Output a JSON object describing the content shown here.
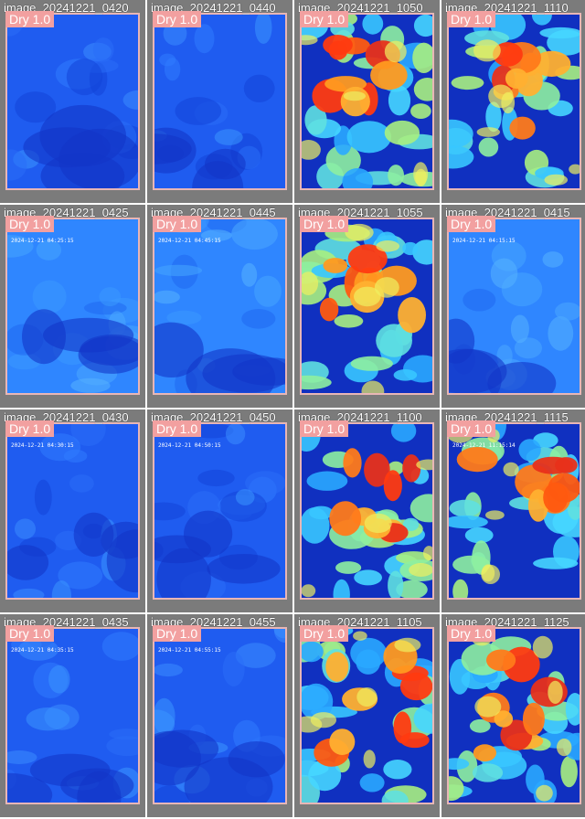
{
  "tiles": [
    {
      "filename": "image_20241221_0420",
      "badge": "Dry 1.0",
      "timestamp": "",
      "variant": "blue",
      "seed": 1
    },
    {
      "filename": "image_20241221_0440",
      "badge": "Dry 1.0",
      "timestamp": "",
      "variant": "blue",
      "seed": 2
    },
    {
      "filename": "image_20241221_1050",
      "badge": "Dry 1.0",
      "timestamp": "",
      "variant": "warm",
      "seed": 3
    },
    {
      "filename": "image_20241221_1110",
      "badge": "Dry 1.0",
      "timestamp": "",
      "variant": "warm",
      "seed": 4
    },
    {
      "filename": "image_20241221_0425",
      "badge": "Dry 1.0",
      "timestamp": "2024-12-21 04:25:15",
      "variant": "lightblue",
      "seed": 5
    },
    {
      "filename": "image_20241221_0445",
      "badge": "Dry 1.0",
      "timestamp": "2024-12-21 04:45:15",
      "variant": "lightblue",
      "seed": 6
    },
    {
      "filename": "image_20241221_1055",
      "badge": "Dry 1.0",
      "timestamp": "",
      "variant": "warm",
      "seed": 7
    },
    {
      "filename": "image_20241221_0415",
      "badge": "Dry 1.0",
      "timestamp": "2024-12-21 04:15:15",
      "variant": "lightblue",
      "seed": 8
    },
    {
      "filename": "image_20241221_0430",
      "badge": "Dry 1.0",
      "timestamp": "2024-12-21 04:30:15",
      "variant": "blue",
      "seed": 9
    },
    {
      "filename": "image_20241221_0450",
      "badge": "Dry 1.0",
      "timestamp": "2024-12-21 04:50:15",
      "variant": "blue",
      "seed": 10
    },
    {
      "filename": "image_20241221_1100",
      "badge": "Dry 1.0",
      "timestamp": "",
      "variant": "warm",
      "seed": 11
    },
    {
      "filename": "image_20241221_1115",
      "badge": "Dry 1.0",
      "timestamp": "2024-12-21 11:15:14",
      "variant": "warm",
      "seed": 12
    },
    {
      "filename": "image_20241221_0435",
      "badge": "Dry 1.0",
      "timestamp": "2024-12-21 04:35:15",
      "variant": "blue",
      "seed": 13
    },
    {
      "filename": "image_20241221_0455",
      "badge": "Dry 1.0",
      "timestamp": "2024-12-21 04:55:15",
      "variant": "blue",
      "seed": 14
    },
    {
      "filename": "image_20241221_1105",
      "badge": "Dry 1.0",
      "timestamp": "",
      "variant": "warm",
      "seed": 15
    },
    {
      "filename": "image_20241221_1125",
      "badge": "Dry 1.0",
      "timestamp": "",
      "variant": "warm",
      "seed": 16
    }
  ],
  "colors": {
    "tile_background": "#7b7b7b",
    "frame_border": "#e8b6b6",
    "badge_background": "#f2a0a0",
    "label_text": "#ffffff"
  }
}
